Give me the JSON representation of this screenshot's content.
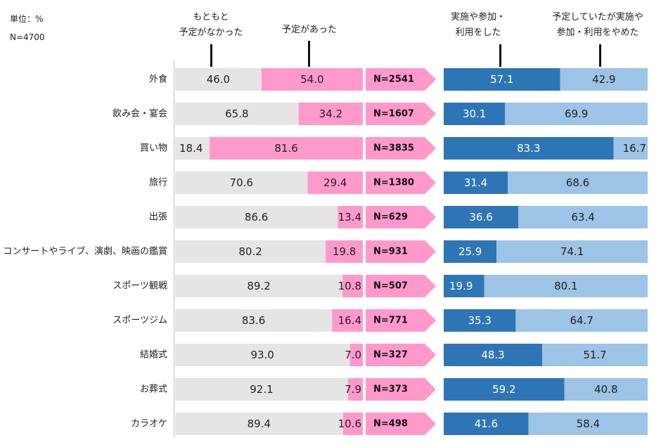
{
  "meta": {
    "unit": "単位：%",
    "n_total": "N=4700"
  },
  "column_labels": {
    "originally_none": [
      "もともと",
      "予定がなかった"
    ],
    "had_plan": "予定があった",
    "did": [
      "実施や参加・",
      "利用をした"
    ],
    "stopped": [
      "予定していたが実施や",
      "参加・利用をやめた"
    ]
  },
  "colors": {
    "none": "#e6e4e4",
    "plan": "#ff99cc",
    "arrow": "#ff99cc",
    "did": "#2e75b6",
    "stopped": "#9dc3e6"
  },
  "chart_data": {
    "type": "bar",
    "stacked": true,
    "orientation": "horizontal",
    "categories": [
      "外食",
      "飲み会・宴会",
      "買い物",
      "旅行",
      "出張",
      "コンサートやライブ、演劇、映画の鑑賞",
      "スポーツ観戦",
      "スポーツジム",
      "結婚式",
      "お葬式",
      "カラオケ"
    ],
    "left_panel": {
      "series": [
        {
          "name": "もともと予定がなかった",
          "values": [
            46.0,
            65.8,
            18.4,
            70.6,
            86.6,
            80.2,
            89.2,
            83.6,
            93.0,
            92.1,
            89.4
          ]
        },
        {
          "name": "予定があった",
          "values": [
            54.0,
            34.2,
            81.6,
            29.4,
            13.4,
            19.8,
            10.8,
            16.4,
            7.0,
            7.9,
            10.6
          ]
        }
      ]
    },
    "n_labels": [
      "N=2541",
      "N=1607",
      "N=3835",
      "N=1380",
      "N=629",
      "N=931",
      "N=507",
      "N=771",
      "N=327",
      "N=373",
      "N=498"
    ],
    "right_panel": {
      "series": [
        {
          "name": "実施や参加・利用をした",
          "values": [
            57.1,
            30.1,
            83.3,
            31.4,
            36.6,
            25.9,
            19.9,
            35.3,
            48.3,
            59.2,
            41.6
          ]
        },
        {
          "name": "予定していたが実施や参加・利用をやめた",
          "values": [
            42.9,
            69.9,
            16.7,
            68.6,
            63.4,
            74.1,
            80.1,
            64.7,
            51.7,
            40.8,
            58.4
          ]
        }
      ]
    },
    "xlim": [
      0,
      100
    ]
  }
}
